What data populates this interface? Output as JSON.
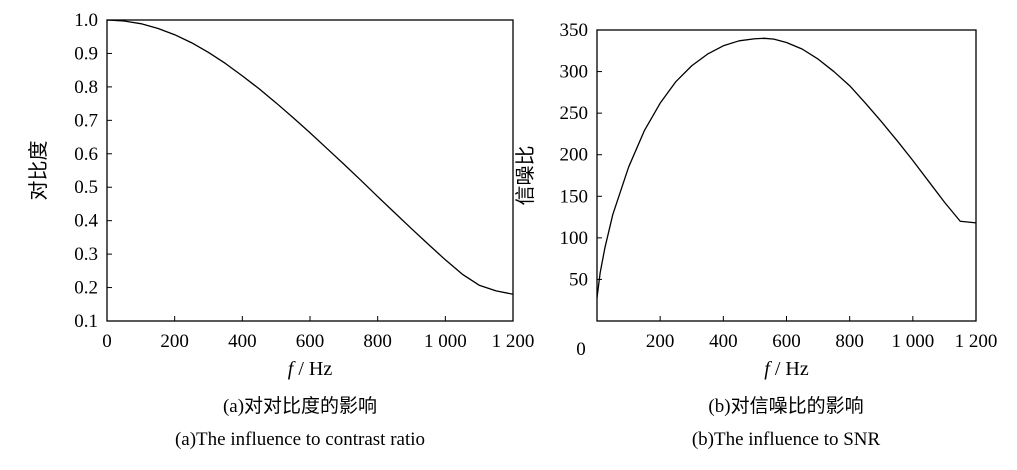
{
  "chart_data": [
    {
      "type": "line",
      "panel": "a",
      "ylabel": "对比度",
      "xlabel_italic": "f",
      "xlabel_rest": " / Hz",
      "caption_cn": "(a)对对比度的影响",
      "caption_en": "(a)The influence to contrast ratio",
      "xlim": [
        0,
        1200
      ],
      "ylim": [
        0.1,
        1.0
      ],
      "xticks": [
        0,
        200,
        400,
        600,
        800,
        1000,
        1200
      ],
      "xtick_labels": [
        "0",
        "200",
        "400",
        "600",
        "800",
        "1 000",
        "1 200"
      ],
      "yticks": [
        0.1,
        0.2,
        0.3,
        0.4,
        0.5,
        0.6,
        0.7,
        0.8,
        0.9,
        1.0
      ],
      "ytick_labels": [
        "0.1",
        "0.2",
        "0.3",
        "0.4",
        "0.5",
        "0.6",
        "0.7",
        "0.8",
        "0.9",
        "1.0"
      ],
      "grid": false,
      "series": [
        {
          "x": [
            0,
            50,
            100,
            150,
            200,
            250,
            300,
            350,
            400,
            450,
            500,
            550,
            600,
            650,
            700,
            750,
            800,
            850,
            900,
            950,
            1000,
            1050,
            1100,
            1150,
            1200
          ],
          "y": [
            1.0,
            0.997,
            0.989,
            0.975,
            0.956,
            0.932,
            0.903,
            0.87,
            0.833,
            0.794,
            0.752,
            0.708,
            0.663,
            0.616,
            0.569,
            0.521,
            0.472,
            0.424,
            0.376,
            0.329,
            0.283,
            0.24,
            0.207,
            0.19,
            0.18
          ]
        }
      ]
    },
    {
      "type": "line",
      "panel": "b",
      "ylabel": "信噪比",
      "xlabel_italic": "f",
      "xlabel_rest": " / Hz",
      "caption_cn": "(b)对信噪比的影响",
      "caption_en": "(b)The influence to SNR",
      "xlim": [
        0,
        1200
      ],
      "ylim": [
        0,
        350
      ],
      "xticks": [
        200,
        400,
        600,
        800,
        1000,
        1200
      ],
      "xtick_labels": [
        "200",
        "400",
        "600",
        "800",
        "1 000",
        "1 200"
      ],
      "yticks": [
        50,
        100,
        150,
        200,
        250,
        300,
        350
      ],
      "ytick_labels": [
        "50",
        "100",
        "150",
        "200",
        "250",
        "300",
        "350"
      ],
      "origin_label": "0",
      "grid": false,
      "series": [
        {
          "x": [
            0,
            10,
            25,
            50,
            100,
            150,
            200,
            250,
            300,
            350,
            400,
            450,
            500,
            530,
            560,
            600,
            650,
            700,
            750,
            800,
            850,
            900,
            950,
            1000,
            1050,
            1100,
            1150,
            1200
          ],
          "y": [
            28,
            58,
            88,
            128,
            185,
            229,
            262,
            288,
            307,
            321,
            331,
            337,
            339.5,
            340,
            339,
            335,
            327,
            315,
            300,
            283,
            262,
            240,
            217,
            193,
            168,
            143,
            120,
            118
          ]
        }
      ]
    }
  ]
}
